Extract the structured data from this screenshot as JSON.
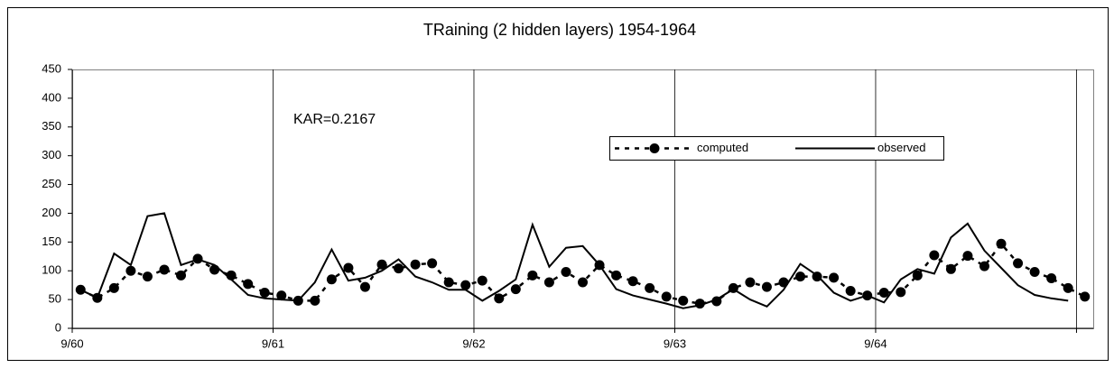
{
  "chart_data": {
    "type": "line",
    "title": "TRaining (2 hidden layers) 1954-1964",
    "annotation": "KAR=0.2167",
    "categories": [
      "9/60",
      null,
      null,
      null,
      null,
      null,
      null,
      null,
      null,
      null,
      null,
      null,
      "9/61",
      null,
      null,
      null,
      null,
      null,
      null,
      null,
      null,
      null,
      null,
      null,
      "9/62",
      null,
      null,
      null,
      null,
      null,
      null,
      null,
      null,
      null,
      null,
      null,
      "9/63",
      null,
      null,
      null,
      null,
      null,
      null,
      null,
      null,
      null,
      null,
      null,
      "9/64",
      null,
      null,
      null,
      null,
      null,
      null,
      null,
      null,
      null,
      null,
      null,
      null
    ],
    "series": [
      {
        "name": "computed",
        "color": "#000000",
        "dashed": true,
        "markers": true,
        "values": [
          67,
          53,
          70,
          100,
          90,
          102,
          92,
          121,
          102,
          92,
          77,
          62,
          57,
          48,
          48,
          85,
          105,
          72,
          111,
          104,
          111,
          113,
          80,
          75,
          83,
          52,
          68,
          92,
          80,
          98,
          80,
          110,
          92,
          82,
          70,
          55,
          48,
          43,
          47,
          70,
          80,
          72,
          80,
          90,
          90,
          88,
          65,
          57,
          62,
          63,
          92,
          127,
          103,
          126,
          108,
          147,
          113,
          98,
          87,
          70,
          55
        ]
      },
      {
        "name": "observed",
        "color": "#000000",
        "dashed": false,
        "markers": false,
        "values": [
          67,
          53,
          130,
          110,
          195,
          200,
          110,
          120,
          110,
          85,
          58,
          52,
          50,
          48,
          80,
          137,
          83,
          88,
          100,
          120,
          90,
          80,
          67,
          67,
          48,
          65,
          85,
          180,
          107,
          140,
          143,
          110,
          68,
          57,
          50,
          43,
          35,
          40,
          50,
          68,
          50,
          38,
          67,
          112,
          92,
          62,
          48,
          57,
          45,
          85,
          103,
          95,
          158,
          182,
          135,
          105,
          75,
          58,
          52,
          48,
          null
        ]
      }
    ],
    "ylim": [
      0,
      450
    ],
    "yticks": [
      0,
      50,
      100,
      150,
      200,
      250,
      300,
      350,
      400,
      450
    ],
    "grid": false,
    "xgrid": true
  }
}
